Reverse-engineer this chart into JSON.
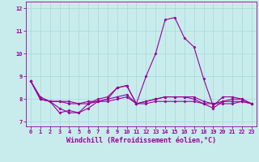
{
  "title": "",
  "xlabel": "Windchill (Refroidissement éolien,°C)",
  "background_color": "#c8ecec",
  "grid_color": "#aadddd",
  "line_color": "#990099",
  "spine_color": "#990099",
  "xlim": [
    -0.5,
    23.5
  ],
  "ylim": [
    6.8,
    12.3
  ],
  "yticks": [
    7,
    8,
    9,
    10,
    11,
    12
  ],
  "xticks": [
    0,
    1,
    2,
    3,
    4,
    5,
    6,
    7,
    8,
    9,
    10,
    11,
    12,
    13,
    14,
    15,
    16,
    17,
    18,
    19,
    20,
    21,
    22,
    23
  ],
  "series": [
    [
      8.8,
      8.0,
      7.9,
      7.4,
      7.5,
      7.4,
      7.6,
      7.9,
      8.0,
      8.5,
      8.6,
      7.8,
      9.0,
      10.0,
      11.5,
      11.6,
      10.7,
      10.3,
      8.9,
      7.7,
      8.1,
      8.1,
      8.0,
      7.8
    ],
    [
      8.8,
      8.0,
      7.9,
      7.9,
      7.8,
      7.8,
      7.9,
      7.9,
      8.0,
      8.1,
      8.2,
      7.8,
      7.9,
      8.0,
      8.1,
      8.1,
      8.1,
      8.1,
      7.9,
      7.8,
      7.9,
      7.9,
      7.9,
      7.8
    ],
    [
      8.8,
      8.1,
      7.9,
      7.9,
      7.9,
      7.8,
      7.8,
      7.9,
      7.9,
      8.0,
      8.1,
      7.8,
      7.8,
      7.9,
      7.9,
      7.9,
      7.9,
      7.9,
      7.8,
      7.8,
      7.8,
      7.8,
      7.9,
      7.8
    ],
    [
      8.8,
      8.0,
      7.9,
      7.6,
      7.4,
      7.4,
      7.8,
      8.0,
      8.1,
      8.5,
      8.6,
      7.8,
      7.9,
      8.0,
      8.1,
      8.1,
      8.1,
      8.0,
      7.8,
      7.6,
      7.9,
      8.0,
      8.0,
      7.8
    ]
  ],
  "marker": "D",
  "marker_size": 1.5,
  "line_width": 0.8,
  "tick_fontsize": 5.0,
  "xlabel_fontsize": 6.0
}
